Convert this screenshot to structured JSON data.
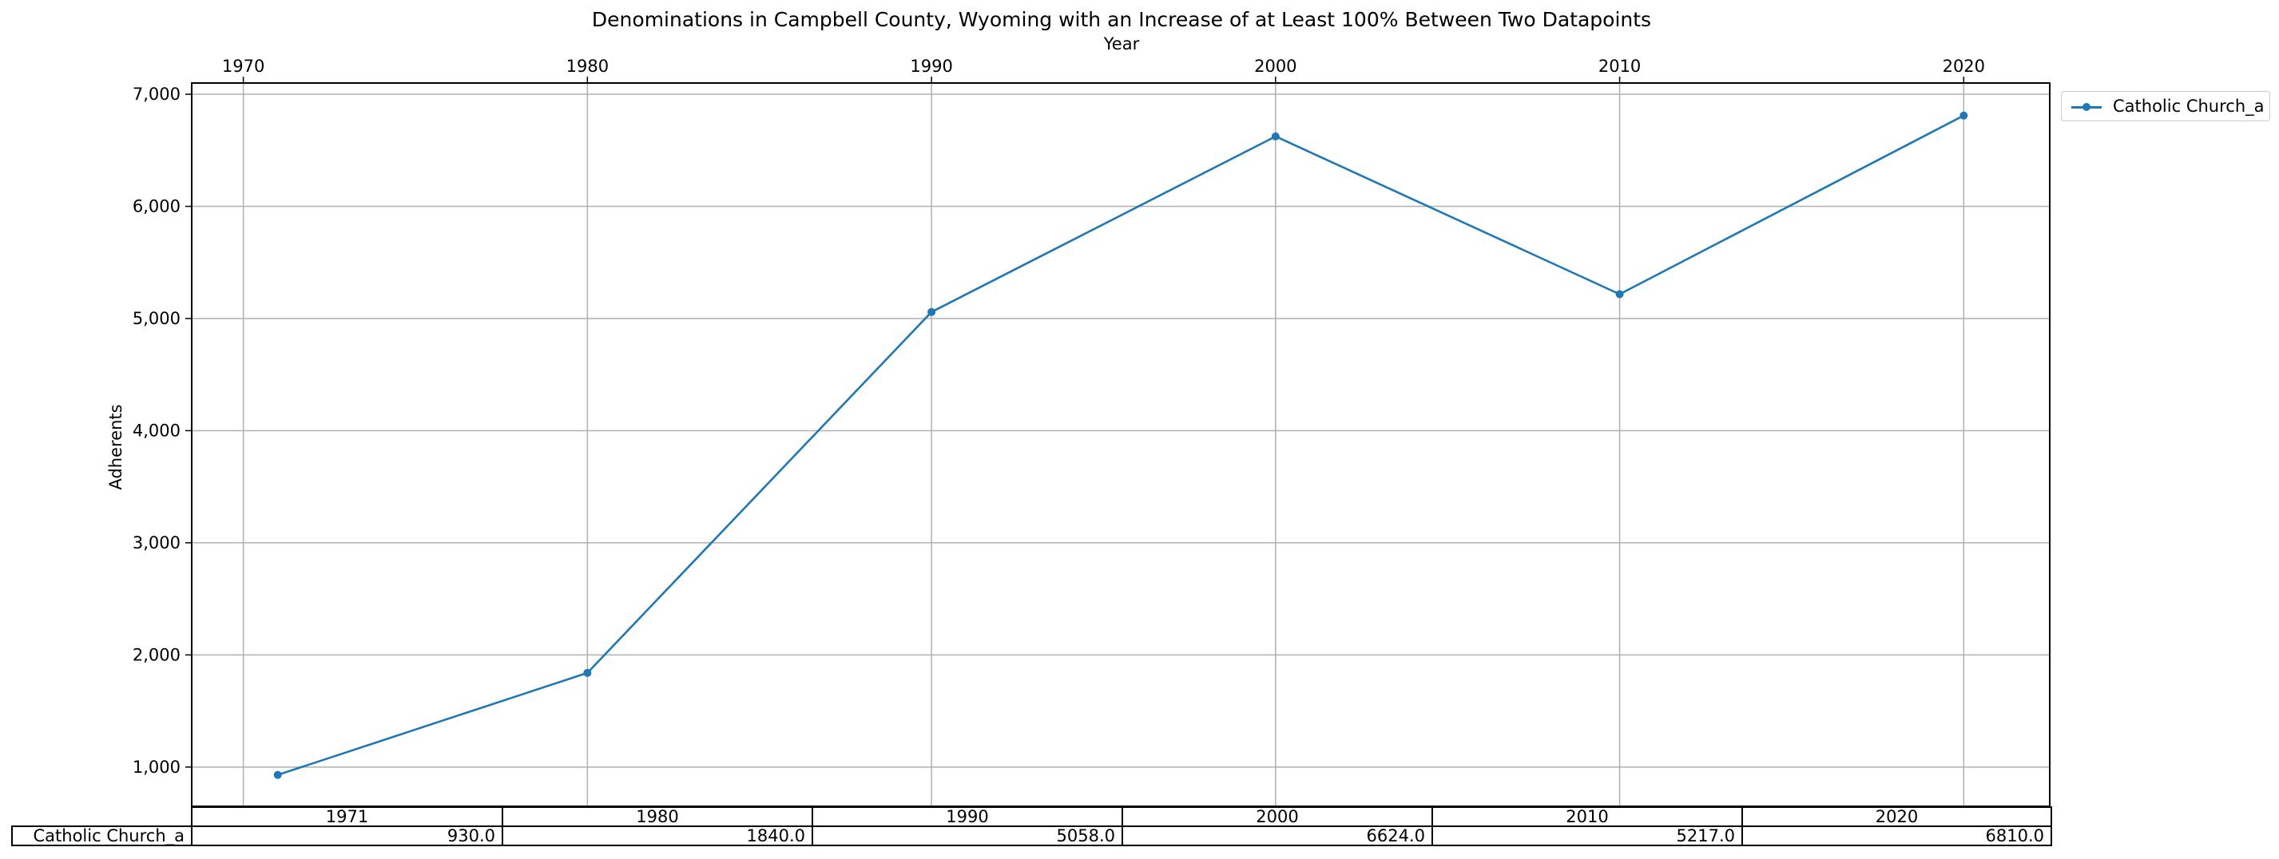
{
  "chart_data": {
    "type": "line",
    "title": "Denominations in Campbell County, Wyoming with an Increase of at Least 100% Between Two Datapoints",
    "xlabel": "Year",
    "ylabel": "Adherents",
    "xlim": [
      1968.5,
      2022.5
    ],
    "ylim": [
      650,
      7100
    ],
    "x_ticks": [
      1970,
      1980,
      1990,
      2000,
      2010,
      2020
    ],
    "x_tick_labels": [
      "1970",
      "1980",
      "1990",
      "2000",
      "2010",
      "2020"
    ],
    "y_ticks": [
      1000,
      2000,
      3000,
      4000,
      5000,
      6000,
      7000
    ],
    "y_tick_labels": [
      "1,000",
      "2,000",
      "3,000",
      "4,000",
      "5,000",
      "6,000",
      "7,000"
    ],
    "x_axis_position": "top",
    "grid": true,
    "legend_position": "outside-top-right",
    "series": [
      {
        "name": "Catholic Church_a",
        "color": "#1f77b4",
        "marker": "circle",
        "x": [
          1971,
          1980,
          1990,
          2000,
          2010,
          2020
        ],
        "y": [
          930,
          1840,
          5058,
          6624,
          5217,
          6810
        ]
      }
    ],
    "table": {
      "columns": [
        "1971",
        "1980",
        "1990",
        "2000",
        "2010",
        "2020"
      ],
      "rows": [
        {
          "label": "Catholic Church_a",
          "values": [
            "930.0",
            "1840.0",
            "5058.0",
            "6624.0",
            "5217.0",
            "6810.0"
          ]
        }
      ]
    }
  }
}
